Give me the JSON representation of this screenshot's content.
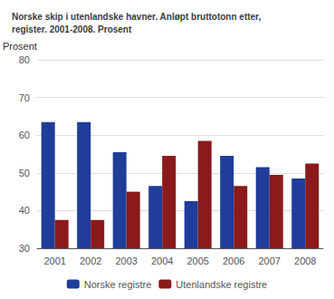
{
  "chart_data": {
    "type": "bar",
    "title": "Norske skip i utenlandske havner. Anløpt bruttotonn etter,\nregister. 2001-2008. Prosent",
    "ylabel": "Prosent",
    "categories": [
      "2001",
      "2002",
      "2003",
      "2004",
      "2005",
      "2006",
      "2007",
      "2008"
    ],
    "series": [
      {
        "name": "Norske registre",
        "color": "#1f3d99",
        "values": [
          63.5,
          63.5,
          55.5,
          46.5,
          42.5,
          54.5,
          51.5,
          48.5
        ]
      },
      {
        "name": "Utenlandske registre",
        "color": "#8b1a1a",
        "values": [
          37.5,
          37.5,
          45.0,
          54.5,
          58.5,
          46.5,
          49.5,
          52.5
        ]
      }
    ],
    "ylim": [
      30,
      80
    ],
    "yticks": [
      30,
      40,
      50,
      60,
      70,
      80
    ],
    "grid": true,
    "legend": "bottom"
  }
}
